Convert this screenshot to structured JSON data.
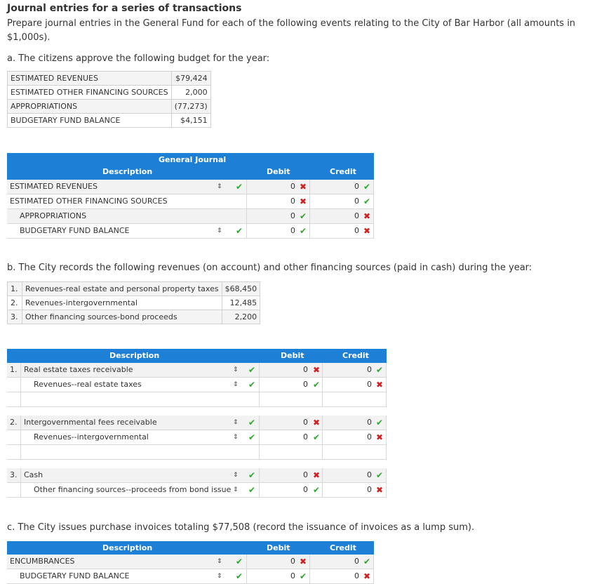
{
  "title": "Journal entries for a series of transactions",
  "intro": "Prepare journal entries in the General Fund for each of the following events relating to the City of Bar Harbor (all amounts in $1,000s).",
  "part_a": {
    "question": "a. The citizens approve the following budget for the year:",
    "budget": [
      {
        "label": "ESTIMATED REVENUES",
        "value": "$79,424"
      },
      {
        "label": "ESTIMATED OTHER FINANCING SOURCES",
        "value": "2,000"
      },
      {
        "label": "APPROPRIATIONS",
        "value": "(77,273)"
      },
      {
        "label": "BUDGETARY FUND BALANCE",
        "value": "$4,151"
      }
    ],
    "journal_title": "General Journal",
    "col_desc": "Description",
    "col_debit": "Debit",
    "col_credit": "Credit",
    "rows": [
      {
        "desc": "ESTIMATED REVENUES",
        "debit": "0",
        "credit": "0"
      },
      {
        "desc": "ESTIMATED OTHER FINANCING SOURCES",
        "debit": "0",
        "credit": "0"
      },
      {
        "desc": "APPROPRIATIONS",
        "debit": "0",
        "credit": "0"
      },
      {
        "desc": "BUDGETARY FUND BALANCE",
        "debit": "0",
        "credit": "0"
      }
    ]
  },
  "part_b": {
    "question": "b. The City records the following revenues (on account) and other financing sources (paid in cash) during the year:",
    "items": [
      {
        "num": "1.",
        "label": "Revenues-real estate and personal property taxes",
        "value": "$68,450"
      },
      {
        "num": "2.",
        "label": "Revenues-intergovernmental",
        "value": "12,485"
      },
      {
        "num": "3.",
        "label": "Other financing sources-bond proceeds",
        "value": "2,200"
      }
    ],
    "col_desc": "Description",
    "col_debit": "Debit",
    "col_credit": "Credit",
    "entries": [
      {
        "num": "1.",
        "line1": "Real estate taxes receivable",
        "line2": "Revenues--real estate taxes"
      },
      {
        "num": "2.",
        "line1": "Intergovernmental fees receivable",
        "line2": "Revenues--intergovernmental"
      },
      {
        "num": "3.",
        "line1": "Cash",
        "line2": "Other financing sources--proceeds from bond issue"
      }
    ],
    "zero": "0"
  },
  "part_c": {
    "question": "c. The City issues purchase invoices totaling $77,508 (record the issuance of invoices as a lump sum).",
    "col_desc": "Description",
    "col_debit": "Debit",
    "col_credit": "Credit",
    "rows": [
      {
        "desc": "ENCUMBRANCES",
        "debit": "0",
        "credit": "0"
      },
      {
        "desc": "BUDGETARY FUND BALANCE",
        "debit": "0",
        "credit": "0"
      }
    ]
  },
  "icons": {
    "correct": "check-icon",
    "incorrect": "cross-icon",
    "spinner": "updown-arrows-icon"
  }
}
